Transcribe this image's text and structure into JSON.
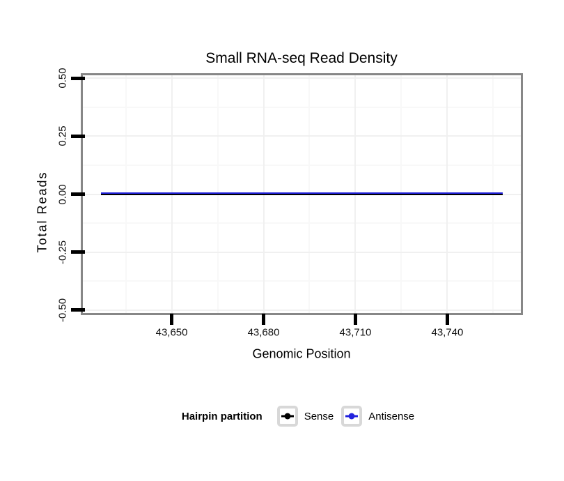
{
  "figure": {
    "title": "Small RNA-seq Read Density",
    "background": "#ffffff"
  },
  "chart_data": {
    "type": "line",
    "title": "Small RNA-seq Read Density",
    "xlabel": "Genomic Position",
    "ylabel": "Total Reads",
    "xlim": [
      43621,
      43764
    ],
    "ylim": [
      -0.513,
      0.513
    ],
    "x_tick_values": [
      43650,
      43680,
      43710,
      43740
    ],
    "x_tick_labels": [
      "43,650",
      "43,680",
      "43,710",
      "43,740"
    ],
    "x_minor_ticks": [
      43635,
      43665,
      43695,
      43725,
      43755
    ],
    "y_tick_values": [
      0.5,
      0.25,
      0,
      -0.25,
      -0.5
    ],
    "y_tick_labels": [
      "0.50",
      "0.25",
      "0.00",
      "-0.25",
      "-0.50"
    ],
    "y_minor_ticks": [
      0.375,
      0.125,
      -0.125,
      -0.375
    ],
    "grid": true,
    "legend_position": "bottom",
    "series": [
      {
        "name": "Sense",
        "color": "#000000",
        "x": [
          43627,
          43758
        ],
        "y": [
          0,
          0
        ]
      },
      {
        "name": "Antisense",
        "color": "#2222DD",
        "x": [
          43627,
          43758
        ],
        "y": [
          0,
          0
        ]
      }
    ]
  },
  "legend": {
    "title": "Hairpin partition",
    "items": [
      {
        "label": "Sense",
        "color": "#000000"
      },
      {
        "label": "Antisense",
        "color": "#2222DD"
      }
    ]
  },
  "style": {
    "panel_border": "#878787",
    "grid_major": "#f0f0f0",
    "grid_minor": "#f8f8f8",
    "tick_color": "#000000",
    "key_box_border": "#d8d8d8"
  }
}
